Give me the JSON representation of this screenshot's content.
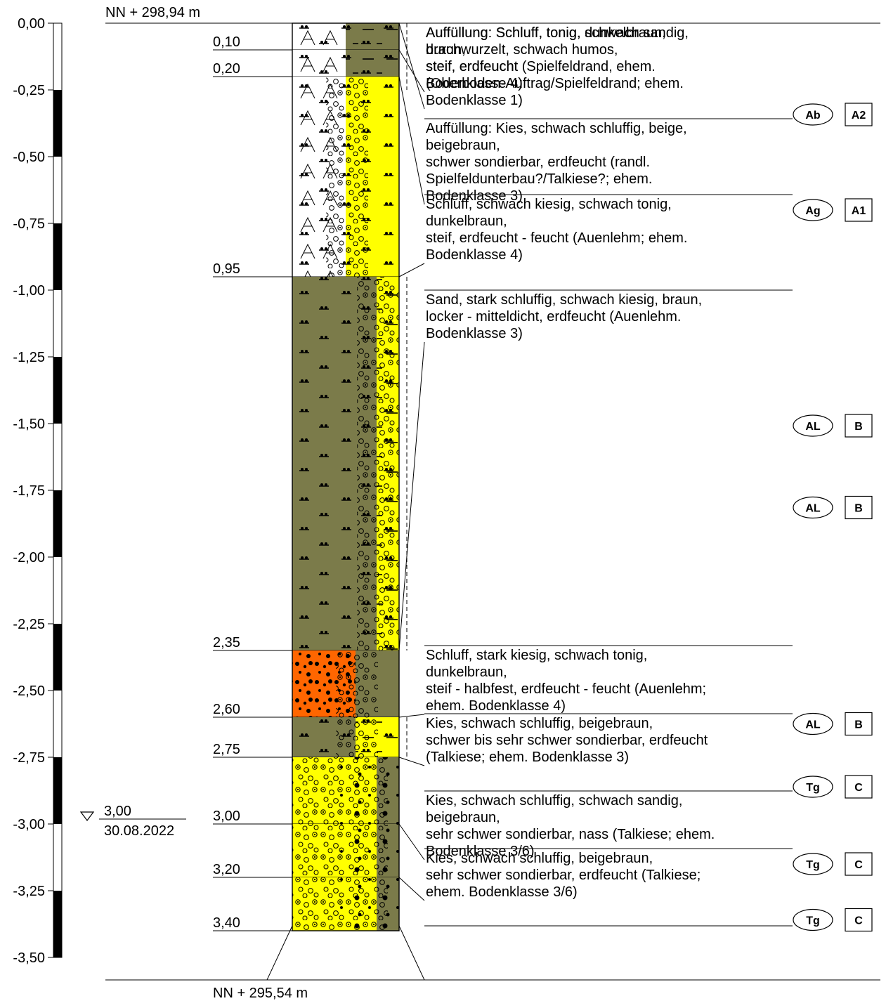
{
  "top_elevation": "NN + 298,94 m",
  "bottom_elevation": "NN + 295,54 m",
  "scale_ticks": [
    "0,00",
    "-0,25",
    "-0,50",
    "-0,75",
    "-1,00",
    "-1,25",
    "-1,50",
    "-1,75",
    "-2,00",
    "-2,25",
    "-2,50",
    "-2,75",
    "-3,00",
    "-3,25",
    "-3,50"
  ],
  "groundwater": {
    "depth": "3,00",
    "date": "30.08.2022"
  },
  "depth_labels": [
    "0,10",
    "0,20",
    "0,95",
    "2,35",
    "2,60",
    "2,75",
    "3,00",
    "3,20",
    "3,40"
  ],
  "layers": [
    {
      "top": 0.0,
      "bottom": 0.1,
      "left_fill": "#ffffff",
      "right_fill": "#7b7b4a",
      "symbols": [
        "A",
        "silt",
        "clay"
      ]
    },
    {
      "top": 0.1,
      "bottom": 0.2,
      "left_fill": "#ffffff",
      "right_fill": "#7b7b4a",
      "symbols": [
        "A",
        "silt",
        "clay"
      ]
    },
    {
      "top": 0.2,
      "bottom": 0.95,
      "left_fill": "#ffffff",
      "right_fill": "#ffff00",
      "symbols": [
        "A",
        "silt",
        "gravel"
      ]
    },
    {
      "top": 0.95,
      "bottom": 2.35,
      "left_fill": "#7b7b4a",
      "right_fill": "#ffff00",
      "symbols": [
        "silt",
        "gravel",
        "clay"
      ]
    },
    {
      "top": 2.35,
      "bottom": 2.6,
      "left_fill": "#ff6600",
      "right_fill": "#7b7b4a",
      "symbols": [
        "sand",
        "gravel"
      ]
    },
    {
      "top": 2.6,
      "bottom": 2.75,
      "left_fill": "#7b7b4a",
      "right_fill": "#ffff00",
      "symbols": [
        "silt",
        "gravel",
        "clay"
      ]
    },
    {
      "top": 2.75,
      "bottom": 3.0,
      "left_fill": "#ffff00",
      "right_fill": "#7b7b4a",
      "symbols": [
        "gravel",
        "sand"
      ]
    },
    {
      "top": 3.0,
      "bottom": 3.2,
      "left_fill": "#ffff00",
      "right_fill": "#7b7b4a",
      "symbols": [
        "gravel",
        "sand"
      ]
    },
    {
      "top": 3.2,
      "bottom": 3.4,
      "left_fill": "#ffff00",
      "right_fill": "#7b7b4a",
      "symbols": [
        "gravel",
        "sand"
      ]
    }
  ],
  "descriptions": [
    {
      "lines": [
        "Auffüllung: Schluff, tonig, dunkelbraun,",
        "durchwurzelt, schwach humos,",
        "steif, erdfeucht",
        "(Oberboden-Auftrag/Spielfeldrand; ehem.",
        "Bodenklasse 1)"
      ],
      "code": "",
      "cls": ""
    },
    {
      "lines": [
        "Auffüllung: Schluff, tonig, schwach sandig,",
        "braun,",
        "steif, erdfeucht (Spielfeldrand, ehem.",
        "Bodenklasse 4)"
      ],
      "code": "Ab",
      "cls": "A2"
    },
    {
      "lines": [
        "Auffüllung: Kies, schwach schluffig, beige,",
        "beigebraun,",
        "schwer sondierbar, erdfeucht (randl.",
        "Spielfeldunterbau?/Talkiese?; ehem.",
        "Bodenklasse 3)"
      ],
      "code": "Ag",
      "cls": "A1"
    },
    {
      "lines": [
        "Schluff, schwach kiesig, schwach tonig,",
        "dunkelbraun,",
        "steif, erdfeucht - feucht (Auenlehm; ehem.",
        "Bodenklasse 4)"
      ],
      "code": "AL",
      "cls": "B"
    },
    {
      "lines": [
        "Sand, stark schluffig, schwach kiesig, braun,",
        "locker - mitteldicht, erdfeucht (Auenlehm.",
        "Bodenklasse 3)"
      ],
      "code": "AL",
      "cls": "B"
    },
    {
      "lines": [
        "Schluff, stark kiesig, schwach tonig,",
        "dunkelbraun,",
        "steif - halbfest, erdfeucht - feucht (Auenlehm;",
        "ehem. Bodenklasse 4)"
      ],
      "code": "AL",
      "cls": "B"
    },
    {
      "lines": [
        "Kies, schwach schluffig, beigebraun,",
        "schwer bis sehr schwer sondierbar, erdfeucht",
        "(Talkiese; ehem. Bodenklasse 3)"
      ],
      "code": "Tg",
      "cls": "C"
    },
    {
      "lines": [
        "Kies, schwach schluffig, schwach sandig,",
        "beigebraun,",
        "sehr schwer sondierbar, nass (Talkiese; ehem.",
        "Bodenklasse 3/6)"
      ],
      "code": "Tg",
      "cls": "C"
    },
    {
      "lines": [
        "Kies, schwach schluffig, beigebraun,",
        "sehr schwer sondierbar, erdfeucht (Talkiese;",
        "ehem. Bodenklasse 3/6)"
      ],
      "code": "Tg",
      "cls": "C"
    }
  ]
}
